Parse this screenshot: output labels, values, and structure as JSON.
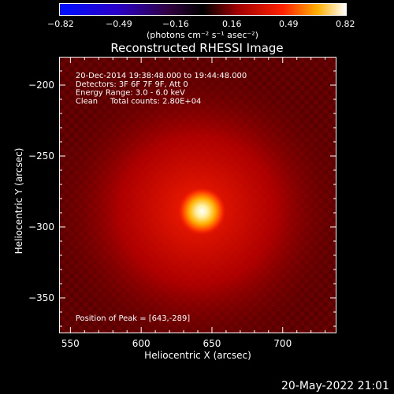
{
  "colorbar": {
    "ticks": [
      "−0.82",
      "−0.49",
      "−0.16",
      "0.16",
      "0.49",
      "0.82"
    ],
    "unit_label": "(photons cm⁻² s⁻¹ asec⁻²)"
  },
  "chart_data": {
    "type": "heatmap",
    "title": "Reconstructed RHESSI Image",
    "xlabel": "Heliocentric X (arcsec)",
    "ylabel": "Heliocentric Y (arcsec)",
    "xlim": [
      542,
      738
    ],
    "ylim": [
      -375,
      -180
    ],
    "x_ticks": [
      "550",
      "600",
      "650",
      "700"
    ],
    "y_ticks": [
      "−200",
      "−250",
      "−300",
      "−350"
    ],
    "peak": [
      643,
      -289
    ],
    "color_range": [
      -0.82,
      0.82
    ],
    "colormap": "red-temperature"
  },
  "annotations": {
    "time_range": "20-Dec-2014 19:38:48.000 to 19:44:48.000",
    "detectors": "Detectors: 3F 6F 7F 9F, Att 0",
    "energy": "Energy Range: 3.0 - 6.0 keV",
    "method": "Clean     Total counts: 2.80E+04",
    "peak_position": "Position of Peak = [643,-289]"
  },
  "footer": "20-May-2022 21:01"
}
